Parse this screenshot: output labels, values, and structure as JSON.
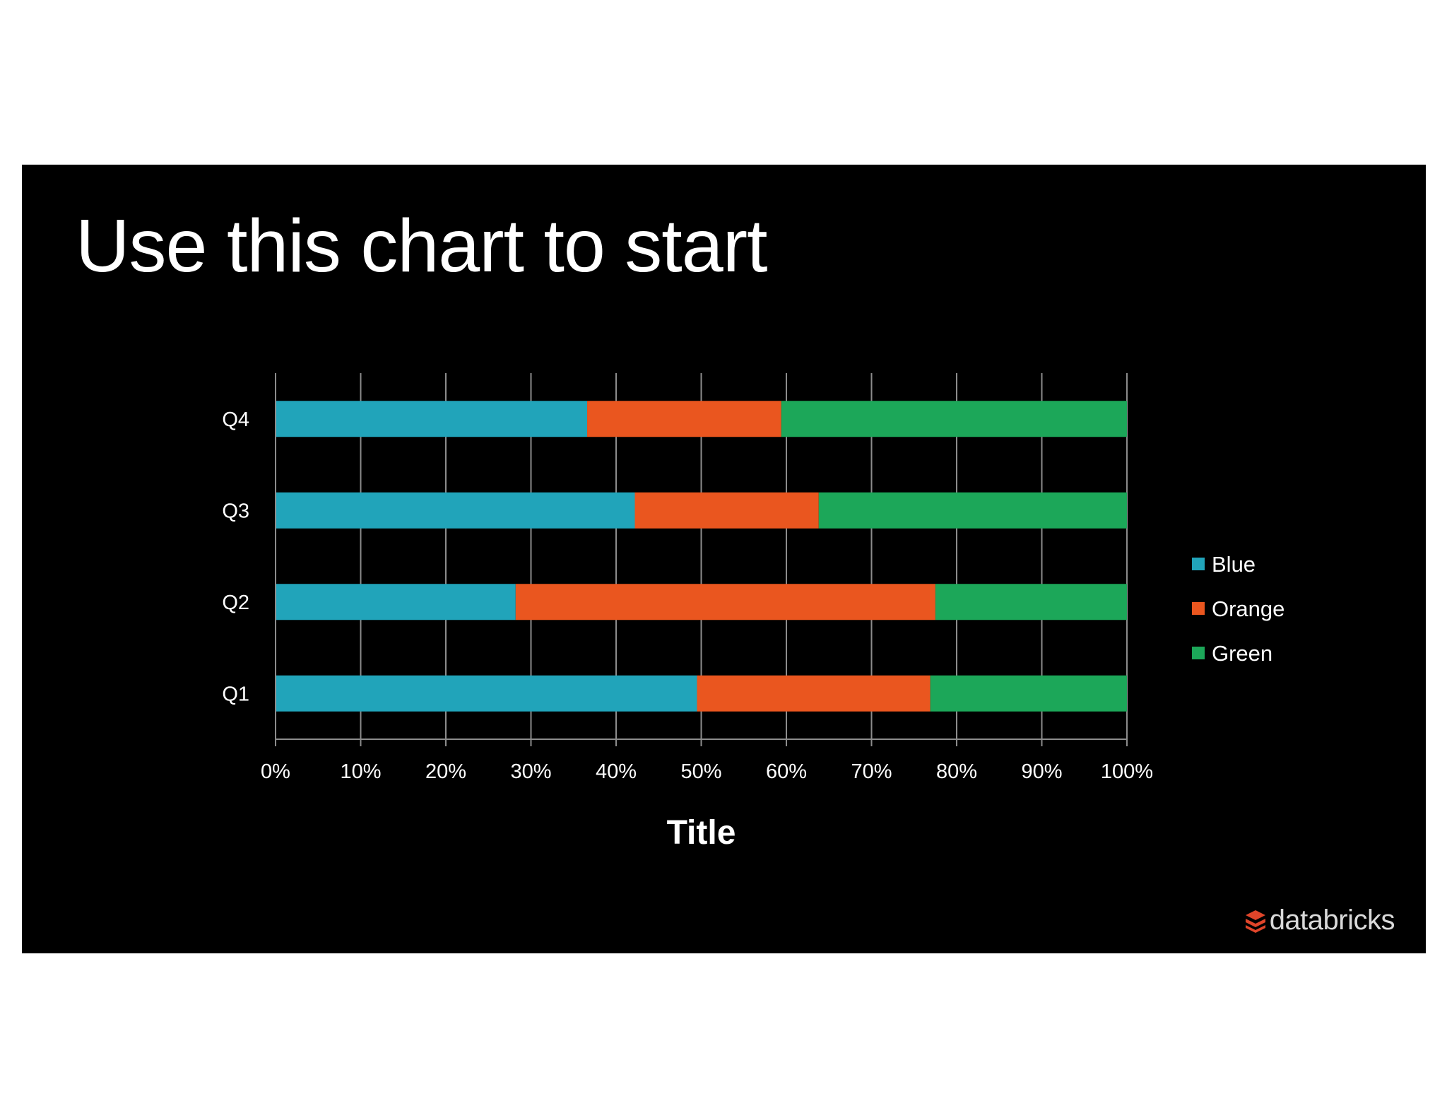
{
  "slide": {
    "title": "Use this chart to start",
    "brand": "databricks",
    "background": "#000000"
  },
  "colors": {
    "Blue": "#21A4BA",
    "Orange": "#EA561F",
    "Green": "#1CA759",
    "grid": "#8c8c8c",
    "text": "#ffffff",
    "brand_icon": "#E0452A"
  },
  "chart_data": {
    "type": "bar",
    "orientation": "horizontal",
    "stacking": "percent",
    "title": "",
    "xlabel": "Title",
    "ylabel": "",
    "categories": [
      "Q1",
      "Q2",
      "Q3",
      "Q4"
    ],
    "series": [
      {
        "name": "Blue",
        "values": [
          49.5,
          28.2,
          42.2,
          36.6
        ]
      },
      {
        "name": "Orange",
        "values": [
          27.4,
          49.3,
          21.6,
          22.8
        ]
      },
      {
        "name": "Green",
        "values": [
          23.1,
          22.5,
          36.2,
          40.6
        ]
      }
    ],
    "xlim": [
      0,
      100
    ],
    "xticks": [
      "0%",
      "10%",
      "20%",
      "30%",
      "40%",
      "50%",
      "60%",
      "70%",
      "80%",
      "90%",
      "100%"
    ],
    "grid": true,
    "legend": "right"
  }
}
